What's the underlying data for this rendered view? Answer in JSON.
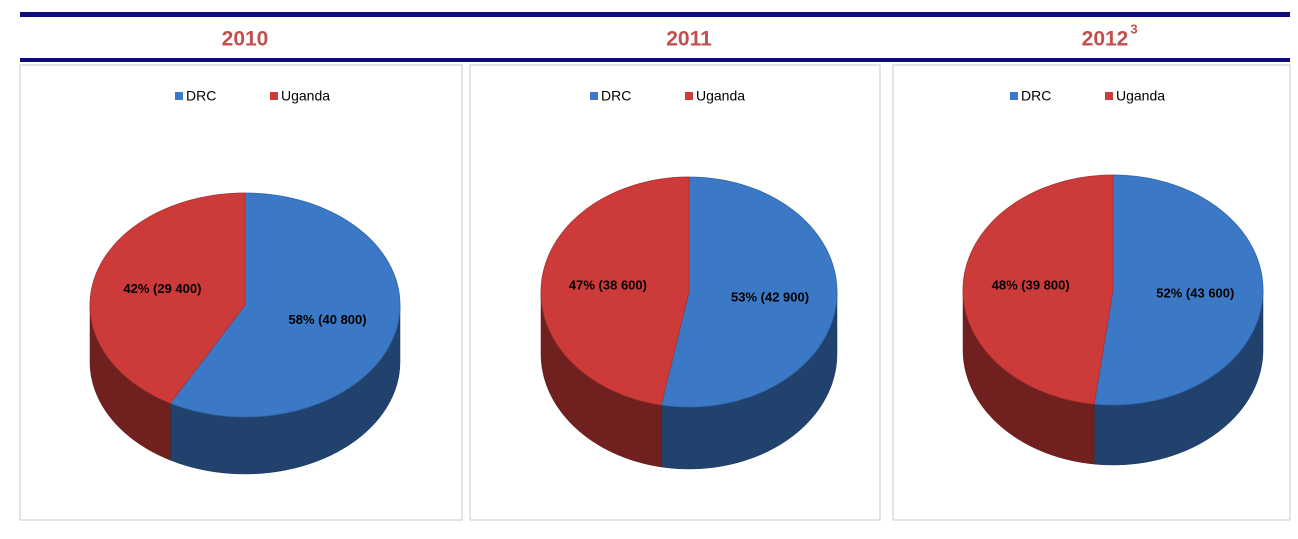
{
  "chart_data": [
    {
      "type": "pie",
      "title": "2010",
      "categories": [
        "DRC",
        "Uganda"
      ],
      "values": [
        58,
        42
      ],
      "value_labels": [
        "58% (40 800)",
        "42% (29 400)"
      ],
      "colors": [
        "#3b78c6",
        "#cc3b39"
      ]
    },
    {
      "type": "pie",
      "title": "2011",
      "categories": [
        "DRC",
        "Uganda"
      ],
      "values": [
        53,
        47
      ],
      "value_labels": [
        "53% (42 900)",
        "47% (38 600)"
      ],
      "colors": [
        "#3b78c6",
        "#cc3b39"
      ]
    },
    {
      "type": "pie",
      "title": "2012",
      "title_note": "3",
      "categories": [
        "DRC",
        "Uganda"
      ],
      "values": [
        52,
        48
      ],
      "value_labels": [
        "52% (43 600)",
        "48% (39 800)"
      ],
      "colors": [
        "#3b78c6",
        "#cc3b39"
      ]
    }
  ]
}
